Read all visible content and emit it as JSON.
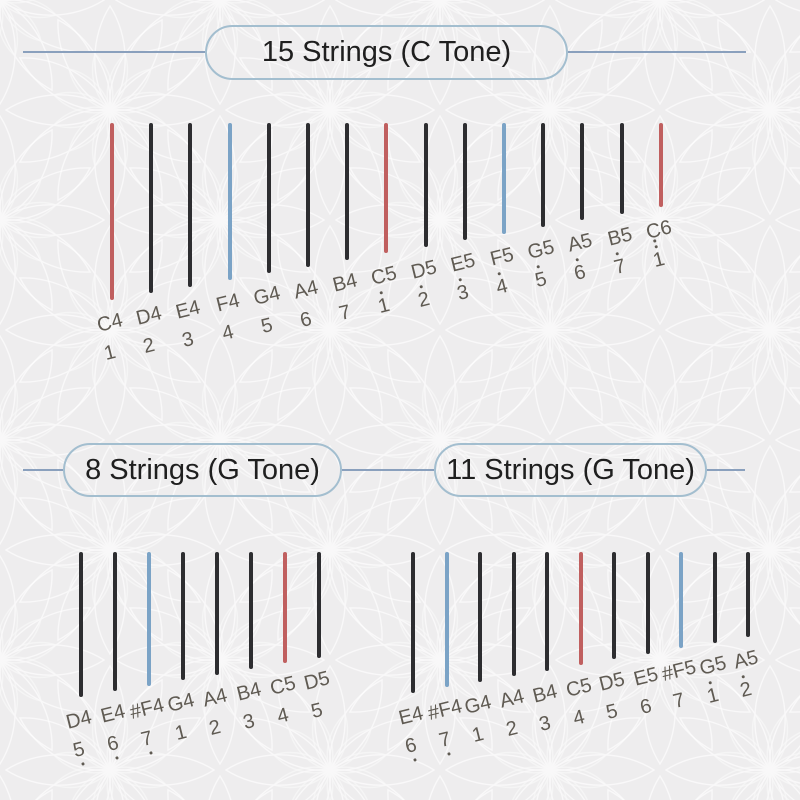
{
  "colors": {
    "background": "#eeedee",
    "pattern_line": "#ffffff",
    "connector_line": "#8aa0bd",
    "pill_border": "#a3becf",
    "title_text": "#1f1f1f",
    "label_text": "#5f5a52",
    "string_black": "#2d2d30",
    "string_red": "#c05f5f",
    "string_blue": "#7ba3c6"
  },
  "sections": [
    {
      "id": "s15",
      "title": "15 Strings (C Tone)",
      "strings": [
        {
          "note": "C4",
          "number": "1",
          "octave": 0,
          "color": "red"
        },
        {
          "note": "D4",
          "number": "2",
          "octave": 0,
          "color": "black"
        },
        {
          "note": "E4",
          "number": "3",
          "octave": 0,
          "color": "black"
        },
        {
          "note": "F4",
          "number": "4",
          "octave": 0,
          "color": "blue"
        },
        {
          "note": "G4",
          "number": "5",
          "octave": 0,
          "color": "black"
        },
        {
          "note": "A4",
          "number": "6",
          "octave": 0,
          "color": "black"
        },
        {
          "note": "B4",
          "number": "7",
          "octave": 0,
          "color": "black"
        },
        {
          "note": "C5",
          "number": "1",
          "octave": 1,
          "color": "red"
        },
        {
          "note": "D5",
          "number": "2",
          "octave": 1,
          "color": "black"
        },
        {
          "note": "E5",
          "number": "3",
          "octave": 1,
          "color": "black"
        },
        {
          "note": "F5",
          "number": "4",
          "octave": 1,
          "color": "blue"
        },
        {
          "note": "G5",
          "number": "5",
          "octave": 1,
          "color": "black"
        },
        {
          "note": "A5",
          "number": "6",
          "octave": 1,
          "color": "black"
        },
        {
          "note": "B5",
          "number": "7",
          "octave": 1,
          "color": "black"
        },
        {
          "note": "C6",
          "number": "1",
          "octave": 2,
          "color": "red"
        }
      ]
    },
    {
      "id": "s8",
      "title": "8 Strings (G Tone)",
      "strings": [
        {
          "note": "D4",
          "number": "5",
          "octave": -1,
          "color": "black"
        },
        {
          "note": "E4",
          "number": "6",
          "octave": -1,
          "color": "black"
        },
        {
          "note": "#F4",
          "number": "7",
          "octave": -1,
          "color": "blue"
        },
        {
          "note": "G4",
          "number": "1",
          "octave": 0,
          "color": "black"
        },
        {
          "note": "A4",
          "number": "2",
          "octave": 0,
          "color": "black"
        },
        {
          "note": "B4",
          "number": "3",
          "octave": 0,
          "color": "black"
        },
        {
          "note": "C5",
          "number": "4",
          "octave": 0,
          "color": "red"
        },
        {
          "note": "D5",
          "number": "5",
          "octave": 0,
          "color": "black"
        }
      ]
    },
    {
      "id": "s11",
      "title": "11 Strings (G Tone)",
      "strings": [
        {
          "note": "E4",
          "number": "6",
          "octave": -1,
          "color": "black"
        },
        {
          "note": "#F4",
          "number": "7",
          "octave": -1,
          "color": "blue"
        },
        {
          "note": "G4",
          "number": "1",
          "octave": 0,
          "color": "black"
        },
        {
          "note": "A4",
          "number": "2",
          "octave": 0,
          "color": "black"
        },
        {
          "note": "B4",
          "number": "3",
          "octave": 0,
          "color": "black"
        },
        {
          "note": "C5",
          "number": "4",
          "octave": 0,
          "color": "red"
        },
        {
          "note": "D5",
          "number": "5",
          "octave": 0,
          "color": "black"
        },
        {
          "note": "E5",
          "number": "6",
          "octave": 0,
          "color": "black"
        },
        {
          "note": "#F5",
          "number": "7",
          "octave": 0,
          "color": "blue"
        },
        {
          "note": "G5",
          "number": "1",
          "octave": 1,
          "color": "black"
        },
        {
          "note": "A5",
          "number": "2",
          "octave": 1,
          "color": "black"
        }
      ]
    }
  ]
}
